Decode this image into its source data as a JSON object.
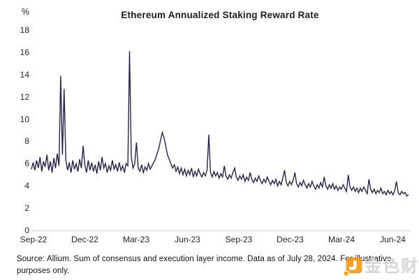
{
  "chart_data": {
    "type": "line",
    "title": "Ethereum Annualized Staking Reward Rate",
    "y_unit": "%",
    "ylim": [
      0,
      18
    ],
    "y_ticks": [
      0,
      2,
      4,
      6,
      8,
      10,
      12,
      14,
      16,
      18
    ],
    "x_tick_labels": [
      "Sep-22",
      "Dec-22",
      "Mar-23",
      "Jun-23",
      "Sep-23",
      "Dec-23",
      "Mar-24",
      "Jun-24"
    ],
    "grid": "off",
    "legend": "none",
    "values": [
      5.5,
      6.1,
      5.4,
      6.3,
      5.6,
      6.6,
      5.3,
      6.2,
      5.7,
      6.8,
      5.4,
      6.2,
      5.2,
      6.5,
      5.6,
      6.9,
      5.8,
      13.9,
      6.8,
      12.7,
      6.3,
      5.4,
      6.1,
      5.2,
      6.3,
      5.5,
      6.0,
      5.3,
      6.4,
      5.6,
      7.6,
      5.9,
      5.2,
      6.3,
      5.4,
      6.1,
      5.3,
      5.9,
      5.1,
      6.2,
      5.4,
      6.6,
      5.6,
      6.0,
      5.2,
      5.8,
      5.4,
      6.3,
      5.5,
      5.9,
      5.3,
      6.1,
      5.4,
      5.8,
      5.2,
      6.0,
      5.8,
      16.1,
      6.6,
      5.6,
      6.0,
      7.9,
      5.6,
      5.3,
      5.9,
      5.2,
      5.7,
      5.4,
      6.0,
      5.5,
      5.8,
      6.1,
      6.4,
      6.9,
      7.4,
      8.1,
      8.8,
      8.3,
      7.6,
      6.8,
      6.4,
      6.0,
      5.6,
      5.9,
      5.3,
      5.7,
      5.1,
      5.6,
      5.0,
      5.5,
      4.9,
      5.4,
      5.0,
      5.6,
      4.8,
      5.3,
      4.9,
      5.5,
      5.1,
      4.8,
      5.2,
      4.9,
      5.4,
      8.6,
      5.2,
      4.8,
      5.3,
      4.9,
      5.2,
      4.7,
      5.1,
      4.8,
      5.8,
      4.9,
      4.6,
      5.0,
      4.7,
      5.2,
      5.6,
      4.8,
      4.5,
      4.9,
      4.6,
      5.0,
      4.4,
      4.8,
      4.5,
      5.2,
      4.6,
      4.3,
      4.7,
      4.4,
      4.9,
      4.5,
      4.2,
      4.6,
      4.3,
      4.8,
      4.4,
      4.1,
      4.5,
      4.2,
      4.6,
      4.0,
      4.4,
      4.1,
      4.7,
      5.4,
      4.3,
      4.0,
      4.4,
      4.1,
      4.5,
      5.2,
      4.2,
      3.9,
      4.3,
      4.0,
      4.5,
      4.1,
      3.8,
      4.2,
      3.9,
      4.4,
      4.0,
      3.7,
      4.1,
      3.8,
      4.3,
      3.9,
      4.8,
      4.0,
      3.7,
      4.1,
      3.8,
      4.2,
      3.7,
      4.0,
      3.6,
      3.9,
      3.7,
      4.1,
      3.8,
      3.5,
      5.0,
      3.9,
      3.6,
      3.9,
      3.5,
      3.8,
      3.4,
      3.8,
      3.5,
      3.9,
      3.6,
      3.3,
      4.6,
      3.7,
      3.4,
      3.7,
      3.3,
      3.6,
      3.4,
      3.8,
      3.3,
      3.5,
      3.2,
      3.6,
      3.3,
      3.5,
      3.2,
      3.6,
      4.4,
      3.4,
      3.2,
      3.5,
      3.3,
      3.4,
      3.1,
      3.2
    ]
  },
  "footer": {
    "source_note": "Source: Allium. Sum of consensus and execution layer income. Data as of July 28, 2024. For illustrative purposes only."
  },
  "watermark": {
    "text": "金色财经"
  },
  "colors": {
    "line": "#2b2145",
    "axis": "#dcdcdc",
    "logo_orange": "#f39a1e",
    "watermark_text": "#d3d3d3",
    "background": "#ffffff"
  }
}
